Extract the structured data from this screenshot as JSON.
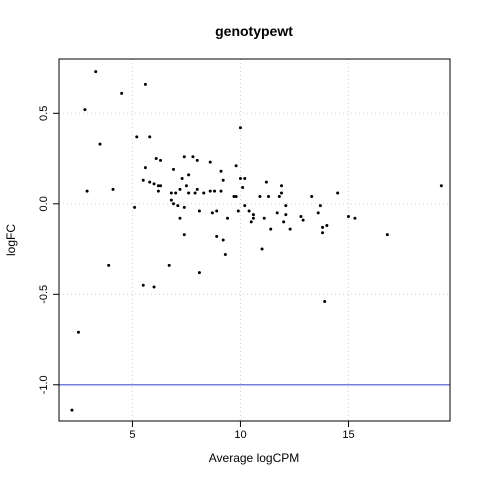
{
  "chart_data": {
    "type": "scatter",
    "title": "genotypewt",
    "xlabel": "Average logCPM",
    "ylabel": "logFC",
    "xlim": [
      1.6,
      19.7
    ],
    "ylim": [
      -1.2,
      0.8
    ],
    "xticks": [
      5,
      10,
      15
    ],
    "xtick_labels": [
      "5",
      "10",
      "15"
    ],
    "yticks": [
      -1.0,
      -0.5,
      0.0,
      0.5
    ],
    "ytick_labels": [
      "-1.0",
      "-0.5",
      "0.0",
      "0.5"
    ],
    "grid": true,
    "hline": {
      "y": -1.0,
      "color": "#4b52d6"
    },
    "point_color": "#000000",
    "points": [
      [
        2.2,
        -1.14
      ],
      [
        2.5,
        -0.71
      ],
      [
        2.8,
        0.52
      ],
      [
        2.9,
        0.07
      ],
      [
        3.3,
        0.73
      ],
      [
        3.5,
        0.33
      ],
      [
        3.9,
        -0.34
      ],
      [
        4.1,
        0.08
      ],
      [
        4.5,
        0.61
      ],
      [
        5.1,
        -0.02
      ],
      [
        5.2,
        0.37
      ],
      [
        5.5,
        -0.45
      ],
      [
        5.5,
        0.13
      ],
      [
        5.6,
        0.2
      ],
      [
        5.6,
        0.66
      ],
      [
        5.8,
        0.37
      ],
      [
        5.8,
        0.12
      ],
      [
        6.0,
        0.11
      ],
      [
        6.0,
        -0.46
      ],
      [
        6.1,
        0.25
      ],
      [
        6.2,
        0.1
      ],
      [
        6.2,
        0.07
      ],
      [
        6.3,
        0.24
      ],
      [
        6.3,
        0.1
      ],
      [
        6.7,
        -0.34
      ],
      [
        6.8,
        0.06
      ],
      [
        6.8,
        0.02
      ],
      [
        6.9,
        0.0
      ],
      [
        6.9,
        0.19
      ],
      [
        7.0,
        0.06
      ],
      [
        7.1,
        -0.01
      ],
      [
        7.2,
        0.08
      ],
      [
        7.2,
        -0.08
      ],
      [
        7.3,
        0.14
      ],
      [
        7.4,
        -0.02
      ],
      [
        7.4,
        0.26
      ],
      [
        7.4,
        -0.17
      ],
      [
        7.5,
        0.1
      ],
      [
        7.6,
        0.06
      ],
      [
        7.6,
        0.16
      ],
      [
        7.8,
        0.26
      ],
      [
        7.9,
        0.06
      ],
      [
        8.0,
        0.08
      ],
      [
        8.0,
        0.24
      ],
      [
        8.1,
        -0.04
      ],
      [
        8.1,
        -0.38
      ],
      [
        8.3,
        0.06
      ],
      [
        8.6,
        0.23
      ],
      [
        8.6,
        0.07
      ],
      [
        8.7,
        -0.05
      ],
      [
        8.8,
        0.07
      ],
      [
        8.9,
        -0.04
      ],
      [
        8.9,
        -0.18
      ],
      [
        9.1,
        0.07
      ],
      [
        9.1,
        0.18
      ],
      [
        9.2,
        0.13
      ],
      [
        9.2,
        -0.2
      ],
      [
        9.3,
        -0.28
      ],
      [
        9.4,
        -0.08
      ],
      [
        9.7,
        0.04
      ],
      [
        9.8,
        0.04
      ],
      [
        9.8,
        0.21
      ],
      [
        9.9,
        -0.04
      ],
      [
        10.0,
        0.14
      ],
      [
        10.0,
        0.42
      ],
      [
        10.1,
        0.09
      ],
      [
        10.2,
        0.14
      ],
      [
        10.2,
        -0.01
      ],
      [
        10.4,
        -0.04
      ],
      [
        10.5,
        -0.1
      ],
      [
        10.6,
        -0.06
      ],
      [
        10.6,
        -0.08
      ],
      [
        10.9,
        0.04
      ],
      [
        11.0,
        -0.25
      ],
      [
        11.1,
        -0.08
      ],
      [
        11.2,
        0.12
      ],
      [
        11.3,
        0.04
      ],
      [
        11.4,
        -0.14
      ],
      [
        11.7,
        -0.05
      ],
      [
        11.8,
        0.04
      ],
      [
        11.9,
        0.1
      ],
      [
        11.9,
        0.06
      ],
      [
        12.0,
        -0.1
      ],
      [
        12.1,
        -0.06
      ],
      [
        12.1,
        -0.01
      ],
      [
        12.3,
        -0.14
      ],
      [
        12.8,
        -0.07
      ],
      [
        12.9,
        -0.09
      ],
      [
        13.3,
        0.04
      ],
      [
        13.6,
        -0.05
      ],
      [
        13.7,
        -0.01
      ],
      [
        13.8,
        -0.13
      ],
      [
        13.8,
        -0.16
      ],
      [
        13.9,
        -0.54
      ],
      [
        14.0,
        -0.12
      ],
      [
        14.5,
        0.06
      ],
      [
        15.0,
        -0.07
      ],
      [
        15.3,
        -0.08
      ],
      [
        16.8,
        -0.17
      ],
      [
        19.3,
        0.1
      ]
    ]
  }
}
